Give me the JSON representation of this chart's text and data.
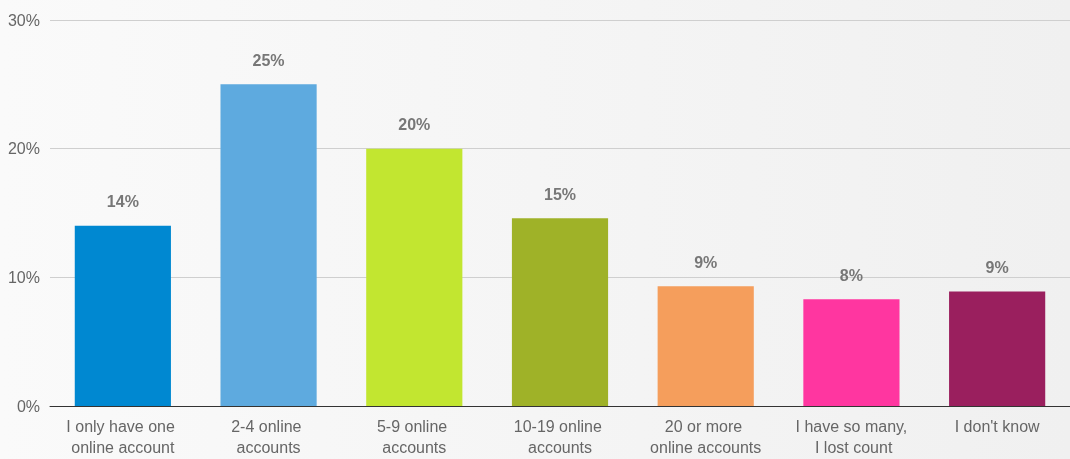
{
  "chart_data": {
    "type": "bar",
    "categories": [
      "I only have one online account",
      "2-4 online accounts",
      "5-9 online accounts",
      "10-19 online accounts",
      "20 or more online accounts",
      "I have so many, I lost count",
      "I don't know"
    ],
    "values": [
      14,
      25,
      20,
      14.6,
      9.3,
      8.3,
      8.9
    ],
    "value_labels": [
      "14%",
      "25%",
      "20%",
      "15%",
      "9%",
      "8%",
      "9%"
    ],
    "colors": [
      "#0088d1",
      "#5eaadf",
      "#c2e630",
      "#9fb228",
      "#f59e5c",
      "#ff36a0",
      "#9a1f5e"
    ],
    "ylim": [
      0,
      30
    ],
    "yticks": [
      {
        "value": 0,
        "label": "0%"
      },
      {
        "value": 10,
        "label": "10%"
      },
      {
        "value": 20,
        "label": "20%"
      },
      {
        "value": 30,
        "label": "30%"
      }
    ],
    "grid": "y"
  }
}
